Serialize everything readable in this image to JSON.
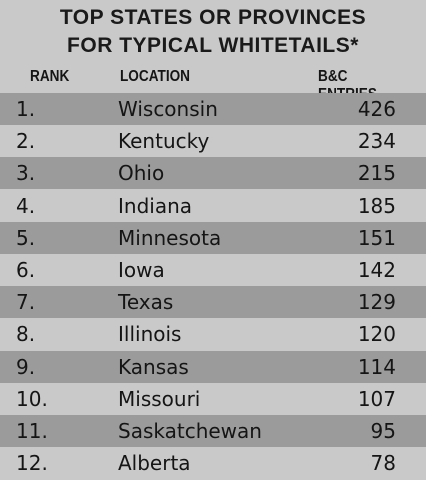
{
  "header": {
    "title_line1": "TOP STATES OR PROVINCES",
    "title_line2": "FOR TYPICAL WHITETAILS*"
  },
  "table": {
    "columns": [
      "RANK",
      "LOCATION",
      "B&C ENTRIES"
    ],
    "rows": [
      [
        "1.",
        "Wisconsin",
        426
      ],
      [
        "2.",
        "Kentucky",
        234
      ],
      [
        "3.",
        "Ohio",
        215
      ],
      [
        "4.",
        "Indiana",
        185
      ],
      [
        "5.",
        "Minnesota",
        151
      ],
      [
        "6.",
        "Iowa",
        142
      ],
      [
        "7.",
        "Texas",
        129
      ],
      [
        "8.",
        "Illinois",
        120
      ],
      [
        "9.",
        "Kansas",
        114
      ],
      [
        "10.",
        "Missouri",
        107
      ],
      [
        "11.",
        "Saskatchewan",
        95
      ],
      [
        "12.",
        "Alberta",
        78
      ]
    ]
  }
}
